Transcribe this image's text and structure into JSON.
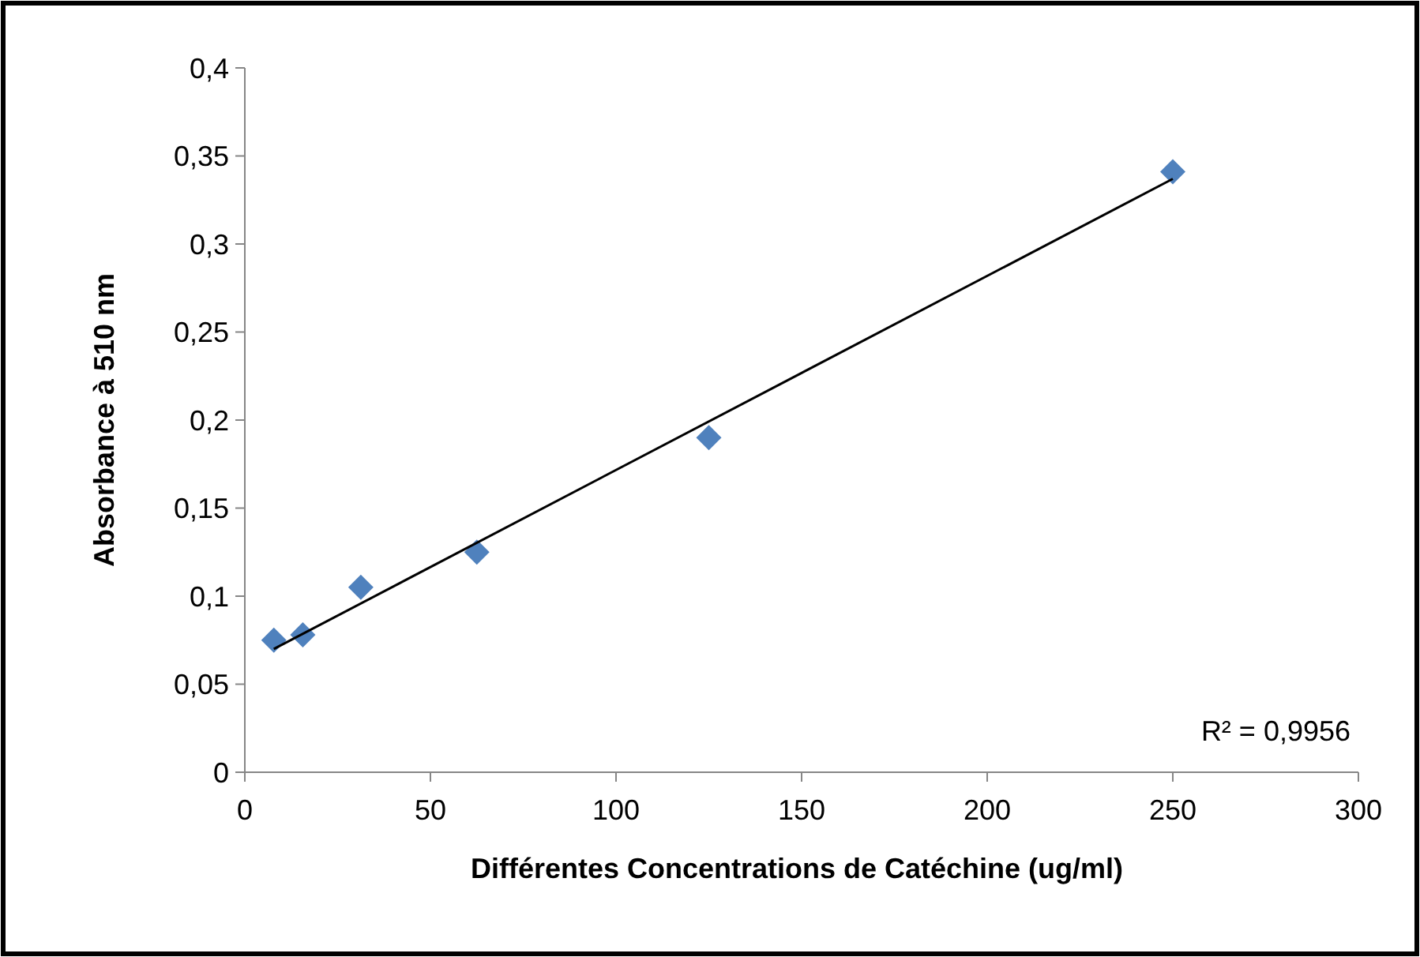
{
  "chart_data": {
    "type": "scatter",
    "xlabel": "Différentes Concentrations de Catéchine (ug/ml)",
    "ylabel": "Absorbance à 510 nm",
    "x": [
      7.8125,
      15.625,
      31.25,
      62.5,
      125,
      250
    ],
    "series": [
      {
        "type": "scatter",
        "color": "#4f81bd",
        "marker": "diamond",
        "values": [
          0.075,
          0.078,
          0.105,
          0.125,
          0.19,
          0.341
        ]
      },
      {
        "type": "line",
        "color": "#000000",
        "marker": "none",
        "line_style": "solid",
        "x": [
          7.8125,
          250
        ],
        "values": [
          0.07,
          0.337
        ]
      }
    ],
    "xlim": [
      0,
      300
    ],
    "xticks": [
      0,
      50,
      100,
      150,
      200,
      250,
      300
    ],
    "ylim": [
      0,
      0.4
    ],
    "yticks": [
      {
        "value": 0,
        "label": "0"
      },
      {
        "value": 0.05,
        "label": "0,05"
      },
      {
        "value": 0.1,
        "label": "0,1"
      },
      {
        "value": 0.15,
        "label": "0,15"
      },
      {
        "value": 0.2,
        "label": "0,2"
      },
      {
        "value": 0.25,
        "label": "0,25"
      },
      {
        "value": 0.3,
        "label": "0,3"
      },
      {
        "value": 0.35,
        "label": "0,35"
      },
      {
        "value": 0.4,
        "label": "0,4"
      }
    ],
    "annotations": [
      "R² = 0,9956"
    ],
    "grid": false
  }
}
